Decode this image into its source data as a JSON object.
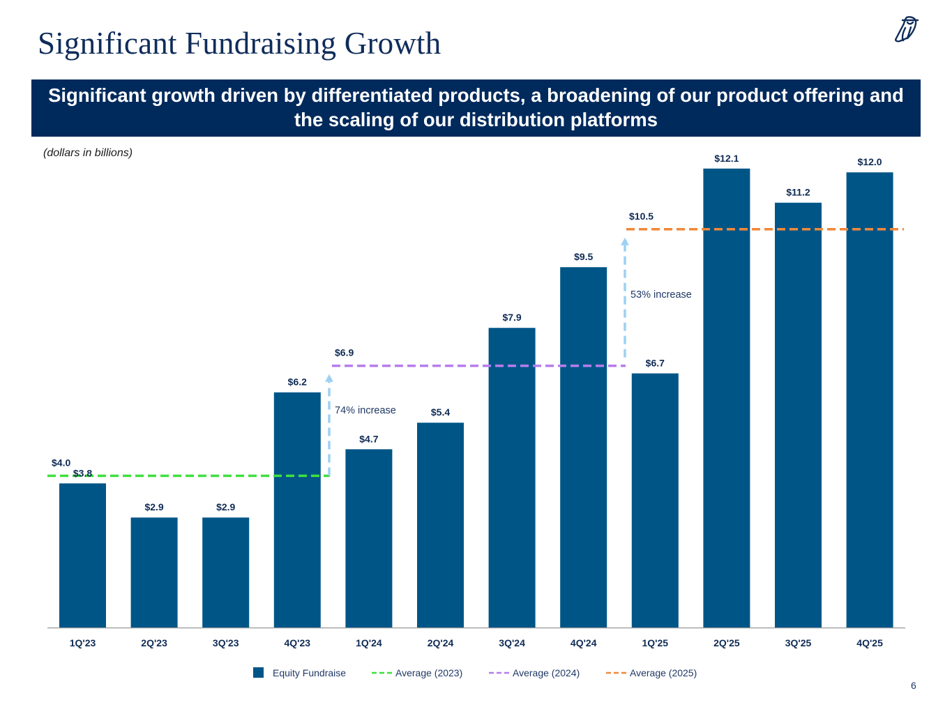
{
  "slide": {
    "title": "Significant Fundraising Growth",
    "banner": "Significant growth driven by differentiated products, a broadening of our product offering and the scaling of our distribution platforms",
    "units_note": "(dollars in billions)",
    "page_number": "6",
    "logo_icon": "owl-logo-icon"
  },
  "colors": {
    "title": "#0f2c5a",
    "banner_bg": "#002a5c",
    "bar": "#005587",
    "avg_2023": "#3ee03e",
    "avg_2024": "#b77ded",
    "avg_2025": "#f0883a",
    "arrow": "#9dd1f2",
    "axis": "#a6a6a6"
  },
  "chart_data": {
    "type": "bar",
    "title": "",
    "xlabel": "",
    "ylabel": "",
    "units": "dollars in billions",
    "ylim": [
      0,
      12.5
    ],
    "grid": false,
    "categories": [
      "1Q'23",
      "2Q'23",
      "3Q'23",
      "4Q'23",
      "1Q'24",
      "2Q'24",
      "3Q'24",
      "4Q'24",
      "1Q'25",
      "2Q'25",
      "3Q'25",
      "4Q'25"
    ],
    "series": [
      {
        "name": "Equity Fundraise",
        "values": [
          3.8,
          2.9,
          2.9,
          6.2,
          4.7,
          5.4,
          7.9,
          9.5,
          6.7,
          12.1,
          11.2,
          12.0
        ],
        "labels": [
          "$3.8",
          "$2.9",
          "$2.9",
          "$6.2",
          "$4.7",
          "$5.4",
          "$7.9",
          "$9.5",
          "$6.7",
          "$12.1",
          "$11.2",
          "$12.0"
        ]
      }
    ],
    "averages": [
      {
        "name": "Average (2023)",
        "value": 4.0,
        "label": "$4.0",
        "from_category": 0,
        "to_category": 3,
        "color_key": "avg_2023"
      },
      {
        "name": "Average (2024)",
        "value": 6.9,
        "label": "$6.9",
        "from_category": 4,
        "to_category": 7,
        "color_key": "avg_2024"
      },
      {
        "name": "Average (2025)",
        "value": 10.5,
        "label": "$10.5",
        "from_category": 8,
        "to_category": 11,
        "color_key": "avg_2025"
      }
    ],
    "annotations": [
      {
        "text": "74% increase",
        "from_value": 4.0,
        "to_value": 6.9,
        "between": [
          3,
          4
        ]
      },
      {
        "text": "53% increase",
        "from_value": 6.9,
        "to_value": 10.5,
        "between": [
          7,
          8
        ]
      }
    ],
    "legend": {
      "position": "bottom-center",
      "entries": [
        {
          "label": "Equity Fundraise",
          "style": "square",
          "color_key": "bar"
        },
        {
          "label": "Average (2023)",
          "style": "dashed",
          "color_key": "avg_2023"
        },
        {
          "label": "Average (2024)",
          "style": "dashed",
          "color_key": "avg_2024"
        },
        {
          "label": "Average (2025)",
          "style": "dashed",
          "color_key": "avg_2025"
        }
      ]
    }
  }
}
